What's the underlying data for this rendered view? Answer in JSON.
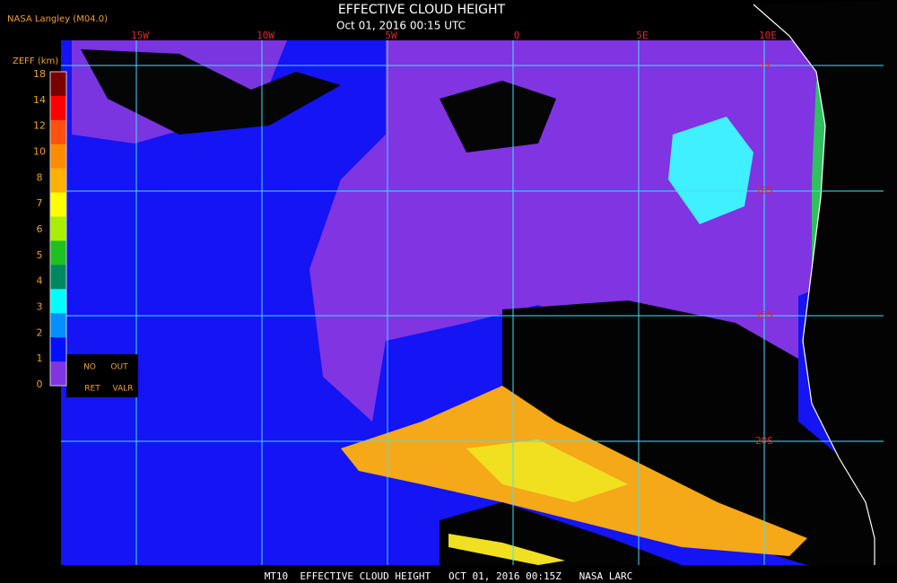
{
  "header": {
    "title": "EFFECTIVE CLOUD HEIGHT",
    "subtitle": "Oct 01, 2016 00:15 UTC",
    "credit": "NASA Langley (M04.0)"
  },
  "colorbar": {
    "title": "ZEFF (km)",
    "ticks": [
      18,
      14,
      12,
      10,
      8,
      7,
      6,
      5,
      4,
      3,
      2,
      1,
      0
    ],
    "labels": [
      "NO",
      "OUT",
      "RET",
      "VALR"
    ]
  },
  "map": {
    "longitudes": [
      "15W",
      "10W",
      "5W",
      "0",
      "5E",
      "10E"
    ],
    "latitudes": [
      "5S",
      "10S",
      "15S",
      "20S"
    ]
  },
  "footer": "MT10  EFFECTIVE CLOUD HEIGHT   OCT 01, 2016 00:15Z   NASA LARC"
}
